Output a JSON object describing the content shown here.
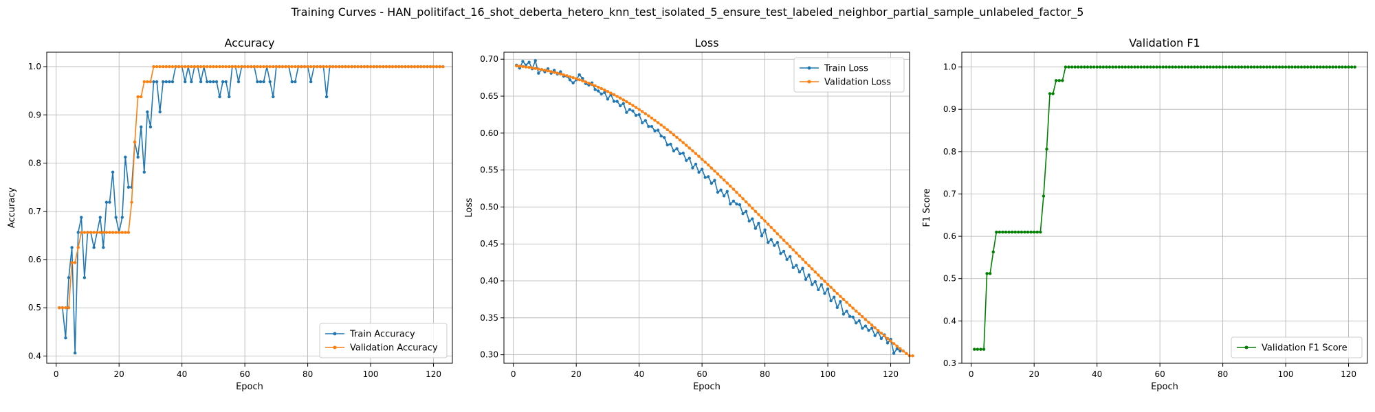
{
  "figure_title": "Training Curves - HAN_politifact_16_shot_deberta_hetero_knn_test_isolated_5_ensure_test_labeled_neighbor_partial_sample_unlabeled_factor_5",
  "colors": {
    "blue": "#1f77b4",
    "orange": "#ff7f0e",
    "green": "#008000",
    "grid": "#b0b0b0"
  },
  "chart_data": [
    {
      "type": "line",
      "title": "Accuracy",
      "xlabel": "Epoch",
      "ylabel": "Accuracy",
      "xlim": [
        -3,
        126
      ],
      "ylim": [
        0.385,
        1.03
      ],
      "xticks": [
        0,
        20,
        40,
        60,
        80,
        100,
        120
      ],
      "yticks": [
        0.4,
        0.5,
        0.6,
        0.7,
        0.8,
        0.9,
        1.0
      ],
      "ytick_labels": [
        "0.4",
        "0.5",
        "0.6",
        "0.7",
        "0.8",
        "0.9",
        "1.0"
      ],
      "grid": true,
      "legend": "lower-right",
      "series": [
        {
          "name": "Train Accuracy",
          "color": "#1f77b4",
          "x_start": 1,
          "values": [
            0.5,
            0.5,
            0.4375,
            0.5625,
            0.625,
            0.40625,
            0.65625,
            0.6875,
            0.5625,
            0.65625,
            0.65625,
            0.625,
            0.65625,
            0.6875,
            0.625,
            0.71875,
            0.71875,
            0.78125,
            0.6875,
            0.65625,
            0.6875,
            0.8125,
            0.75,
            0.75,
            0.84375,
            0.8125,
            0.875,
            0.78125,
            0.90625,
            0.875,
            0.96875,
            0.96875,
            0.90625,
            0.96875,
            0.96875,
            0.96875,
            0.96875,
            1.0,
            1.0,
            1.0,
            0.96875,
            1.0,
            0.96875,
            1.0,
            1.0,
            0.96875,
            1.0,
            0.96875,
            0.96875,
            0.96875,
            0.96875,
            0.9375,
            0.96875,
            0.96875,
            0.9375,
            1.0,
            1.0,
            0.96875,
            1.0,
            1.0,
            1.0,
            1.0,
            1.0,
            0.96875,
            0.96875,
            0.96875,
            1.0,
            0.96875,
            0.9375,
            1.0,
            1.0,
            1.0,
            1.0,
            1.0,
            0.96875,
            0.96875,
            1.0,
            1.0,
            1.0,
            1.0,
            0.96875,
            1.0,
            1.0,
            1.0,
            1.0,
            0.9375,
            1.0,
            1.0,
            1.0,
            1.0,
            1.0,
            1.0,
            1.0,
            1.0,
            1.0,
            1.0,
            1.0,
            1.0,
            1.0,
            1.0,
            1.0,
            1.0,
            1.0,
            1.0,
            1.0,
            1.0,
            1.0,
            1.0,
            1.0,
            1.0,
            1.0,
            1.0,
            1.0,
            1.0,
            1.0,
            1.0,
            1.0,
            1.0,
            1.0,
            1.0,
            1.0,
            1.0,
            1.0
          ]
        },
        {
          "name": "Validation Accuracy",
          "color": "#ff7f0e",
          "x_start": 1,
          "values": [
            0.5,
            0.5,
            0.5,
            0.5,
            0.59375,
            0.59375,
            0.625,
            0.65625,
            0.65625,
            0.65625,
            0.65625,
            0.65625,
            0.65625,
            0.65625,
            0.65625,
            0.65625,
            0.65625,
            0.65625,
            0.65625,
            0.65625,
            0.65625,
            0.65625,
            0.65625,
            0.71875,
            0.84375,
            0.9375,
            0.9375,
            0.96875,
            0.96875,
            0.96875,
            1.0,
            1.0,
            1.0,
            1.0,
            1.0,
            1.0,
            1.0,
            1.0,
            1.0,
            1.0,
            1.0,
            1.0,
            1.0,
            1.0,
            1.0,
            1.0,
            1.0,
            1.0,
            1.0,
            1.0,
            1.0,
            1.0,
            1.0,
            1.0,
            1.0,
            1.0,
            1.0,
            1.0,
            1.0,
            1.0,
            1.0,
            1.0,
            1.0,
            1.0,
            1.0,
            1.0,
            1.0,
            1.0,
            1.0,
            1.0,
            1.0,
            1.0,
            1.0,
            1.0,
            1.0,
            1.0,
            1.0,
            1.0,
            1.0,
            1.0,
            1.0,
            1.0,
            1.0,
            1.0,
            1.0,
            1.0,
            1.0,
            1.0,
            1.0,
            1.0,
            1.0,
            1.0,
            1.0,
            1.0,
            1.0,
            1.0,
            1.0,
            1.0,
            1.0,
            1.0,
            1.0,
            1.0,
            1.0,
            1.0,
            1.0,
            1.0,
            1.0,
            1.0,
            1.0,
            1.0,
            1.0,
            1.0,
            1.0,
            1.0,
            1.0,
            1.0,
            1.0,
            1.0,
            1.0,
            1.0,
            1.0,
            1.0,
            1.0
          ]
        }
      ]
    },
    {
      "type": "line",
      "title": "Loss",
      "xlabel": "Epoch",
      "ylabel": "Loss",
      "xlim": [
        -3,
        126
      ],
      "ylim": [
        0.2885,
        0.7095
      ],
      "xticks": [
        0,
        20,
        40,
        60,
        80,
        100,
        120
      ],
      "yticks": [
        0.3,
        0.35,
        0.4,
        0.45,
        0.5,
        0.55,
        0.6,
        0.65,
        0.7
      ],
      "ytick_labels": [
        "0.30",
        "0.35",
        "0.40",
        "0.45",
        "0.50",
        "0.55",
        "0.60",
        "0.65",
        "0.70"
      ],
      "grid": true,
      "legend": "upper-right",
      "series": [
        {
          "name": "Train Loss",
          "color": "#1f77b4",
          "x_start": 1,
          "values": [
            0.692,
            0.688,
            0.697,
            0.692,
            0.696,
            0.687,
            0.698,
            0.681,
            0.686,
            0.683,
            0.687,
            0.681,
            0.685,
            0.68,
            0.683,
            0.677,
            0.677,
            0.672,
            0.668,
            0.672,
            0.679,
            0.674,
            0.667,
            0.665,
            0.668,
            0.659,
            0.657,
            0.653,
            0.655,
            0.646,
            0.652,
            0.643,
            0.643,
            0.637,
            0.64,
            0.628,
            0.632,
            0.63,
            0.624,
            0.625,
            0.614,
            0.617,
            0.609,
            0.609,
            0.603,
            0.604,
            0.596,
            0.594,
            0.584,
            0.585,
            0.576,
            0.579,
            0.572,
            0.573,
            0.563,
            0.566,
            0.553,
            0.558,
            0.547,
            0.551,
            0.54,
            0.541,
            0.532,
            0.536,
            0.52,
            0.523,
            0.515,
            0.521,
            0.504,
            0.508,
            0.504,
            0.503,
            0.491,
            0.494,
            0.481,
            0.484,
            0.471,
            0.478,
            0.461,
            0.469,
            0.452,
            0.456,
            0.448,
            0.452,
            0.437,
            0.44,
            0.429,
            0.433,
            0.418,
            0.421,
            0.412,
            0.417,
            0.402,
            0.408,
            0.395,
            0.399,
            0.388,
            0.395,
            0.383,
            0.389,
            0.373,
            0.378,
            0.364,
            0.372,
            0.355,
            0.359,
            0.352,
            0.351,
            0.343,
            0.346,
            0.336,
            0.339,
            0.333,
            0.336,
            0.326,
            0.331,
            0.322,
            0.327,
            0.316,
            0.321,
            0.302,
            0.308,
            0.305
          ]
        },
        {
          "name": "Validation Loss",
          "color": "#ff7f0e",
          "x_start": 1,
          "values": [
            0.691,
            0.6905,
            0.69,
            0.6895,
            0.689,
            0.6882,
            0.6875,
            0.6867,
            0.686,
            0.6851,
            0.6842,
            0.6832,
            0.6822,
            0.6811,
            0.68,
            0.6788,
            0.6776,
            0.6763,
            0.675,
            0.6736,
            0.6722,
            0.6707,
            0.6692,
            0.6675,
            0.6658,
            0.664,
            0.6622,
            0.6603,
            0.6583,
            0.6563,
            0.6541,
            0.652,
            0.6497,
            0.6474,
            0.645,
            0.6425,
            0.64,
            0.6374,
            0.6347,
            0.632,
            0.6292,
            0.6263,
            0.6234,
            0.6204,
            0.6173,
            0.6142,
            0.611,
            0.6078,
            0.6045,
            0.6011,
            0.5977,
            0.5942,
            0.5907,
            0.5871,
            0.5835,
            0.5798,
            0.5761,
            0.5723,
            0.5685,
            0.5646,
            0.5607,
            0.5568,
            0.5528,
            0.5488,
            0.5447,
            0.5406,
            0.5365,
            0.5324,
            0.5282,
            0.524,
            0.5198,
            0.5156,
            0.5113,
            0.507,
            0.5027,
            0.4984,
            0.4941,
            0.4898,
            0.4854,
            0.4811,
            0.4767,
            0.4724,
            0.468,
            0.4637,
            0.4593,
            0.455,
            0.4507,
            0.4463,
            0.442,
            0.4377,
            0.4334,
            0.4291,
            0.4248,
            0.4205,
            0.4163,
            0.412,
            0.4078,
            0.4036,
            0.3995,
            0.3953,
            0.3912,
            0.3871,
            0.383,
            0.379,
            0.375,
            0.371,
            0.367,
            0.3631,
            0.3592,
            0.3553,
            0.3515,
            0.3477,
            0.3439,
            0.3402,
            0.3365,
            0.3328,
            0.3292,
            0.3256,
            0.322,
            0.3185,
            0.3151,
            0.3117,
            0.3083,
            0.305,
            0.3017,
            0.2985,
            0.2985
          ]
        }
      ]
    },
    {
      "type": "line",
      "title": "Validation F1",
      "xlabel": "Epoch",
      "ylabel": "F1 Score",
      "xlim": [
        -3,
        126
      ],
      "ylim": [
        0.3,
        1.035
      ],
      "xticks": [
        0,
        20,
        40,
        60,
        80,
        100,
        120
      ],
      "yticks": [
        0.3,
        0.4,
        0.5,
        0.6,
        0.7,
        0.8,
        0.9,
        1.0
      ],
      "ytick_labels": [
        "0.3",
        "0.4",
        "0.5",
        "0.6",
        "0.7",
        "0.8",
        "0.9",
        "1.0"
      ],
      "grid": true,
      "legend": "lower-right",
      "series": [
        {
          "name": "Validation F1 Score",
          "color": "#008000",
          "x_start": 1,
          "values": [
            0.333,
            0.333,
            0.333,
            0.333,
            0.512,
            0.512,
            0.563,
            0.61,
            0.61,
            0.61,
            0.61,
            0.61,
            0.61,
            0.61,
            0.61,
            0.61,
            0.61,
            0.61,
            0.61,
            0.61,
            0.61,
            0.61,
            0.695,
            0.806,
            0.937,
            0.937,
            0.968,
            0.968,
            0.968,
            1.0,
            1.0,
            1.0,
            1.0,
            1.0,
            1.0,
            1.0,
            1.0,
            1.0,
            1.0,
            1.0,
            1.0,
            1.0,
            1.0,
            1.0,
            1.0,
            1.0,
            1.0,
            1.0,
            1.0,
            1.0,
            1.0,
            1.0,
            1.0,
            1.0,
            1.0,
            1.0,
            1.0,
            1.0,
            1.0,
            1.0,
            1.0,
            1.0,
            1.0,
            1.0,
            1.0,
            1.0,
            1.0,
            1.0,
            1.0,
            1.0,
            1.0,
            1.0,
            1.0,
            1.0,
            1.0,
            1.0,
            1.0,
            1.0,
            1.0,
            1.0,
            1.0,
            1.0,
            1.0,
            1.0,
            1.0,
            1.0,
            1.0,
            1.0,
            1.0,
            1.0,
            1.0,
            1.0,
            1.0,
            1.0,
            1.0,
            1.0,
            1.0,
            1.0,
            1.0,
            1.0,
            1.0,
            1.0,
            1.0,
            1.0,
            1.0,
            1.0,
            1.0,
            1.0,
            1.0,
            1.0,
            1.0,
            1.0,
            1.0,
            1.0,
            1.0,
            1.0,
            1.0,
            1.0,
            1.0,
            1.0,
            1.0,
            1.0
          ]
        }
      ]
    }
  ]
}
